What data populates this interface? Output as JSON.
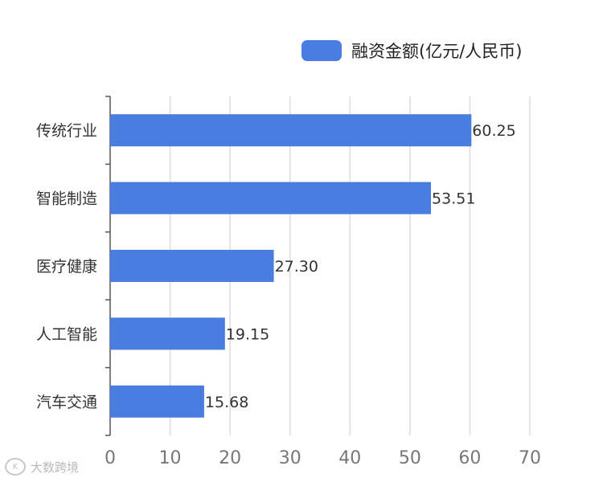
{
  "chart_data": {
    "type": "bar",
    "orientation": "horizontal",
    "categories": [
      "传统行业",
      "智能制造",
      "医疗健康",
      "人工智能",
      "汽车交通"
    ],
    "series": [
      {
        "name": "融资金额(亿元/人民币)",
        "values": [
          60.25,
          53.51,
          27.3,
          19.15,
          15.68
        ]
      }
    ],
    "data_labels": [
      "60.25",
      "53.51",
      "27.30",
      "19.15",
      "15.68"
    ],
    "xlim": [
      0,
      70
    ],
    "xticks": [
      0,
      10,
      20,
      30,
      40,
      50,
      60,
      70
    ],
    "grid": true,
    "legend_position": "top-right"
  },
  "colors": {
    "bar": "#4a7de0",
    "grid": "#dddddd",
    "axis": "#555555"
  },
  "watermark": {
    "logo_text": "K",
    "text": "大数跨境"
  }
}
